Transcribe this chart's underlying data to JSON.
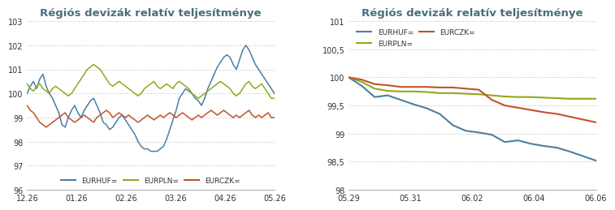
{
  "title": "Régiós devizák relatív teljesítménye",
  "color_huf": "#4a7fa5",
  "color_pln": "#8faa1c",
  "color_czk": "#c0522a",
  "background": "#ffffff",
  "grid_color": "#cccccc",
  "title_color": "#4a6e7a",
  "chart1": {
    "ylim": [
      96,
      103
    ],
    "yticks": [
      96,
      97,
      98,
      99,
      100,
      101,
      102,
      103
    ],
    "xtick_labels": [
      "12.26",
      "01.26",
      "02.26",
      "03.26",
      "04.26",
      "05.26"
    ],
    "huf": [
      100.0,
      100.3,
      100.5,
      100.2,
      100.6,
      100.8,
      100.3,
      100.0,
      99.8,
      99.5,
      99.2,
      98.7,
      98.6,
      99.0,
      99.3,
      99.5,
      99.2,
      99.0,
      99.3,
      99.5,
      99.7,
      99.8,
      99.5,
      99.2,
      98.8,
      98.7,
      98.5,
      98.6,
      98.8,
      99.0,
      99.1,
      98.9,
      98.7,
      98.5,
      98.3,
      98.0,
      97.8,
      97.7,
      97.7,
      97.6,
      97.6,
      97.6,
      97.7,
      97.8,
      98.1,
      98.5,
      98.9,
      99.3,
      99.8,
      100.0,
      100.2,
      100.1,
      100.0,
      99.8,
      99.7,
      99.5,
      99.8,
      100.2,
      100.5,
      100.8,
      101.1,
      101.3,
      101.5,
      101.6,
      101.5,
      101.2,
      101.0,
      101.4,
      101.8,
      102.0,
      101.8,
      101.5,
      101.2,
      101.0,
      100.8,
      100.6,
      100.4,
      100.2,
      100.0
    ],
    "pln": [
      100.4,
      100.2,
      100.1,
      100.3,
      100.4,
      100.2,
      100.1,
      100.0,
      100.2,
      100.3,
      100.2,
      100.1,
      100.0,
      99.9,
      100.0,
      100.2,
      100.4,
      100.6,
      100.8,
      101.0,
      101.1,
      101.2,
      101.1,
      101.0,
      100.8,
      100.6,
      100.4,
      100.3,
      100.4,
      100.5,
      100.4,
      100.3,
      100.2,
      100.1,
      100.0,
      99.9,
      100.0,
      100.2,
      100.3,
      100.4,
      100.5,
      100.3,
      100.2,
      100.3,
      100.4,
      100.3,
      100.2,
      100.4,
      100.5,
      100.4,
      100.3,
      100.2,
      100.0,
      99.9,
      99.8,
      99.9,
      100.0,
      100.1,
      100.2,
      100.3,
      100.4,
      100.5,
      100.4,
      100.3,
      100.2,
      100.0,
      99.9,
      100.0,
      100.2,
      100.4,
      100.5,
      100.3,
      100.2,
      100.3,
      100.4,
      100.2,
      100.0,
      99.8,
      99.8
    ],
    "czk": [
      99.5,
      99.3,
      99.2,
      99.0,
      98.8,
      98.7,
      98.6,
      98.7,
      98.8,
      98.9,
      99.0,
      99.1,
      99.2,
      99.0,
      98.9,
      98.8,
      98.9,
      99.0,
      99.1,
      99.0,
      98.9,
      98.8,
      99.0,
      99.1,
      99.2,
      99.3,
      99.2,
      99.0,
      99.1,
      99.2,
      99.1,
      99.0,
      99.1,
      99.0,
      98.9,
      98.8,
      98.9,
      99.0,
      99.1,
      99.0,
      98.9,
      99.0,
      99.1,
      99.0,
      99.1,
      99.2,
      99.1,
      99.0,
      99.1,
      99.2,
      99.1,
      99.0,
      98.9,
      99.0,
      99.1,
      99.0,
      99.1,
      99.2,
      99.3,
      99.2,
      99.1,
      99.2,
      99.3,
      99.2,
      99.1,
      99.0,
      99.1,
      99.0,
      99.1,
      99.2,
      99.3,
      99.1,
      99.0,
      99.1,
      99.0,
      99.1,
      99.2,
      99.0,
      99.0
    ]
  },
  "chart2": {
    "ylim": [
      98,
      101
    ],
    "yticks": [
      98,
      98.5,
      99,
      99.5,
      100,
      100.5,
      101
    ],
    "ytick_labels": [
      "98",
      "98,5",
      "99",
      "99,5",
      "100",
      "100,5",
      "101"
    ],
    "xtick_labels": [
      "05.29",
      "05.31",
      "06.02",
      "06.04",
      "06.06"
    ],
    "huf": [
      100.0,
      99.85,
      99.65,
      99.68,
      99.6,
      99.52,
      99.45,
      99.35,
      99.15,
      99.05,
      99.02,
      98.98,
      98.85,
      98.88,
      98.82,
      98.78,
      98.75,
      98.68,
      98.6,
      98.52
    ],
    "pln": [
      100.0,
      99.92,
      99.8,
      99.76,
      99.75,
      99.75,
      99.74,
      99.72,
      99.72,
      99.71,
      99.7,
      99.68,
      99.66,
      99.65,
      99.65,
      99.64,
      99.63,
      99.62,
      99.62,
      99.62
    ],
    "czk": [
      100.0,
      99.96,
      99.88,
      99.86,
      99.83,
      99.83,
      99.83,
      99.82,
      99.82,
      99.8,
      99.78,
      99.6,
      99.5,
      99.46,
      99.42,
      99.38,
      99.35,
      99.3,
      99.25,
      99.2
    ]
  }
}
